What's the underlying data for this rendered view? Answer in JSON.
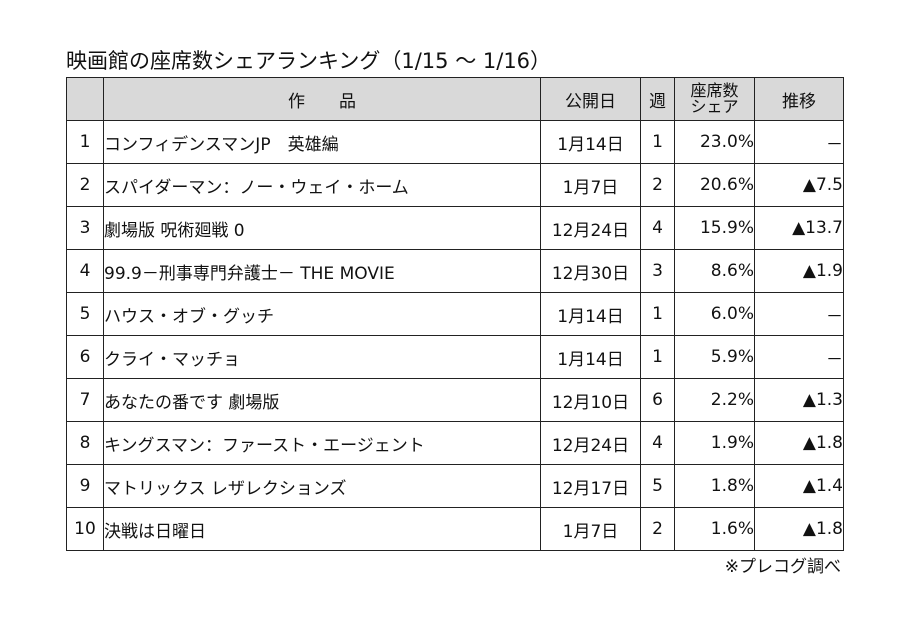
{
  "title": "映画館の座席数シェアランキング（1/15 ～ 1/16）",
  "headers": {
    "rank": "",
    "title": "作　　品",
    "release": "公開日",
    "week": "週",
    "share_line1": "座席数",
    "share_line2": "シェア",
    "trend": "推移"
  },
  "rows": [
    {
      "rank": "1",
      "title": "コンフィデンスマンJP　英雄編",
      "release": "1月14日",
      "week": "1",
      "share": "23.0%",
      "trend": "－"
    },
    {
      "rank": "2",
      "title": "スパイダーマン：ノー・ウェイ・ホーム",
      "release": "1月7日",
      "week": "2",
      "share": "20.6%",
      "trend": "▲7.5"
    },
    {
      "rank": "3",
      "title": "劇場版 呪術廻戦 0",
      "release": "12月24日",
      "week": "4",
      "share": "15.9%",
      "trend": "▲13.7"
    },
    {
      "rank": "4",
      "title": "99.9－刑事専門弁護士－ THE MOVIE",
      "release": "12月30日",
      "week": "3",
      "share": "8.6%",
      "trend": "▲1.9"
    },
    {
      "rank": "5",
      "title": "ハウス・オブ・グッチ",
      "release": "1月14日",
      "week": "1",
      "share": "6.0%",
      "trend": "－"
    },
    {
      "rank": "6",
      "title": "クライ・マッチョ",
      "release": "1月14日",
      "week": "1",
      "share": "5.9%",
      "trend": "－"
    },
    {
      "rank": "7",
      "title": "あなたの番です 劇場版",
      "release": "12月10日",
      "week": "6",
      "share": "2.2%",
      "trend": "▲1.3"
    },
    {
      "rank": "8",
      "title": "キングスマン：ファースト・エージェント",
      "release": "12月24日",
      "week": "4",
      "share": "1.9%",
      "trend": "▲1.8"
    },
    {
      "rank": "9",
      "title": "マトリックス レザレクションズ",
      "release": "12月17日",
      "week": "5",
      "share": "1.8%",
      "trend": "▲1.4"
    },
    {
      "rank": "10",
      "title": "決戦は日曜日",
      "release": "1月7日",
      "week": "2",
      "share": "1.6%",
      "trend": "▲1.8"
    }
  ],
  "source": "※プレコグ調べ"
}
